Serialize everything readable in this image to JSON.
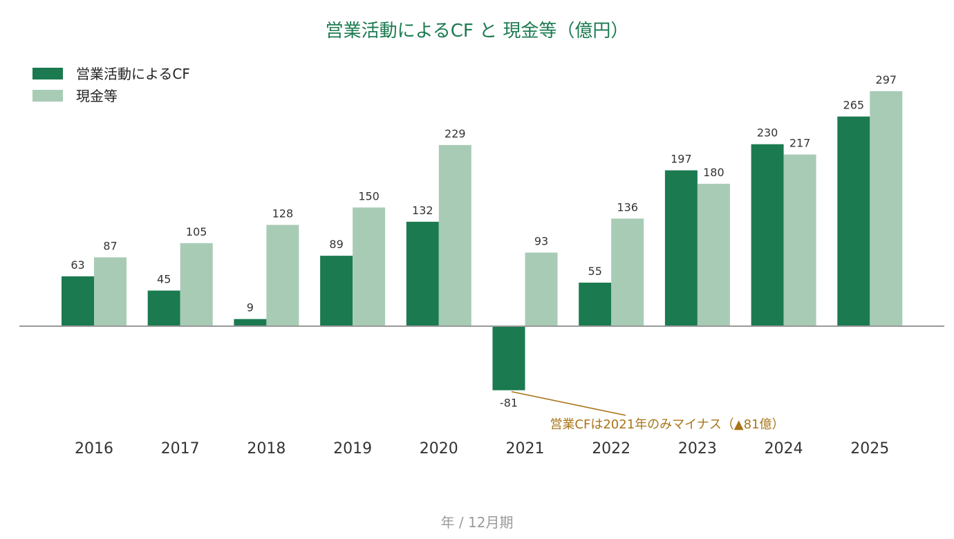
{
  "chart_data": {
    "type": "bar",
    "title": "営業活動によるCF と 現金等（億円）",
    "xlabel": "年 / 12月期",
    "ylabel": "",
    "categories": [
      "2016",
      "2017",
      "2018",
      "2019",
      "2020",
      "2021",
      "2022",
      "2023",
      "2024",
      "2025"
    ],
    "series": [
      {
        "name": "営業活動によるCF",
        "color": "#1b7a50",
        "values": [
          63,
          45,
          9,
          89,
          132,
          -81,
          55,
          197,
          230,
          265
        ]
      },
      {
        "name": "現金等",
        "color": "#a8cbb5",
        "values": [
          87,
          105,
          128,
          150,
          229,
          93,
          136,
          180,
          217,
          297
        ]
      }
    ],
    "ylim": [
      -81,
      297
    ],
    "grid": false,
    "legend": "top-left",
    "annotation": {
      "text": "営業CFは2021年のみマイナス（▲81億）",
      "category": "2021",
      "series": 0,
      "color": "#a87418"
    },
    "colors": {
      "title": "#1b7a50",
      "axis": "#999999"
    }
  }
}
